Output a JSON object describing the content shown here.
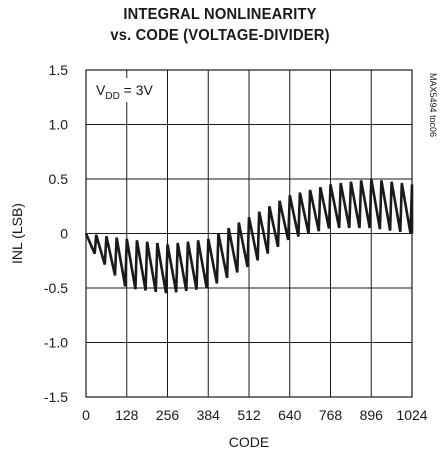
{
  "chart_data": {
    "type": "line",
    "title_line1": "INTEGRAL NONLINEARITY",
    "title_line2": "vs. CODE (VOLTAGE-DIVIDER)",
    "xlabel": "CODE",
    "ylabel": "INL (LSB)",
    "annotation": {
      "prefix": "V",
      "subscript": "DD",
      "suffix": " = 3V"
    },
    "side_label": "MAX5494 toc06",
    "xlim": [
      0,
      1024
    ],
    "ylim": [
      -1.5,
      1.5
    ],
    "x_ticks": [
      "0",
      "128",
      "256",
      "384",
      "512",
      "640",
      "768",
      "896",
      "1024"
    ],
    "y_ticks": [
      "1.5",
      "1.0",
      "0.5",
      "0",
      "-0.5",
      "-1.0",
      "-1.5"
    ],
    "grid": true,
    "sawtooth_period_codes": 32,
    "series": [
      {
        "upper_envelope": [
          [
            0,
            0
          ],
          [
            128,
            -0.05
          ],
          [
            256,
            -0.1
          ],
          [
            384,
            -0.05
          ],
          [
            512,
            0.15
          ],
          [
            640,
            0.35
          ],
          [
            768,
            0.45
          ],
          [
            896,
            0.5
          ],
          [
            1024,
            0.45
          ]
        ],
        "lower_envelope": [
          [
            0,
            -0.1
          ],
          [
            128,
            -0.5
          ],
          [
            256,
            -0.55
          ],
          [
            384,
            -0.5
          ],
          [
            512,
            -0.3
          ],
          [
            640,
            -0.05
          ],
          [
            768,
            0.05
          ],
          [
            896,
            0.05
          ],
          [
            1024,
            0.0
          ]
        ]
      }
    ]
  }
}
